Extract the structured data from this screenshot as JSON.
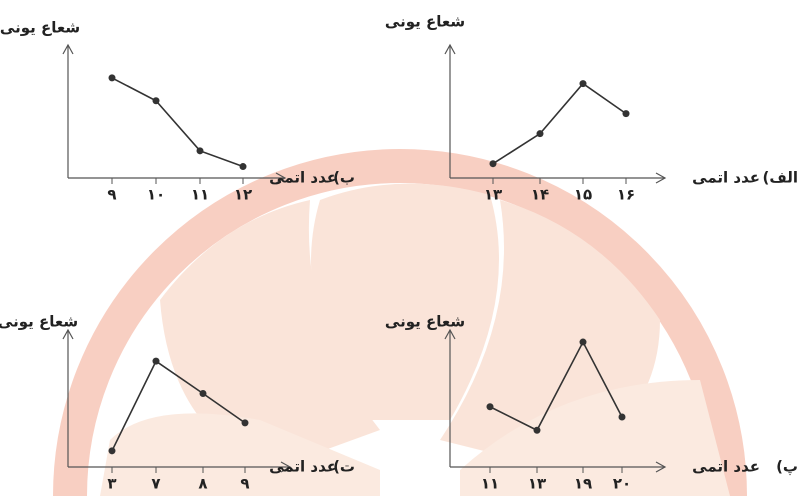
{
  "chart_data": [
    {
      "type": "line",
      "label": "ب)",
      "ylabel": "شعاع یونی",
      "xlabel": "عدد اتمی",
      "categories": [
        "۹",
        "۱۰",
        "۱۱",
        "۱۲"
      ],
      "values": [
        7.0,
        5.4,
        1.9,
        0.8
      ],
      "ylim": [
        0,
        10
      ],
      "color": "#333333"
    },
    {
      "type": "line",
      "label": "الف)",
      "ylabel": "شعاع یونی",
      "xlabel": "عدد اتمی",
      "categories": [
        "۱۳",
        "۱۴",
        "۱۵",
        "۱۶"
      ],
      "values": [
        1.0,
        3.1,
        6.6,
        4.5
      ],
      "ylim": [
        0,
        10
      ],
      "color": "#333333"
    },
    {
      "type": "line",
      "label": "ت)",
      "ylabel": "شعاع یونی",
      "xlabel": "عدد اتمی",
      "categories": [
        "۳",
        "۷",
        "۸",
        "۹"
      ],
      "values": [
        1.1,
        7.2,
        5.0,
        3.0
      ],
      "ylim": [
        0,
        10
      ],
      "color": "#333333"
    },
    {
      "type": "line",
      "label": "پ)",
      "ylabel": "شعاع یونی",
      "xlabel": "عدد اتمی",
      "categories": [
        "۱۱",
        "۱۳",
        "۱۹",
        "۲۰"
      ],
      "values": [
        4.1,
        2.5,
        8.5,
        3.4
      ],
      "ylim": [
        0,
        10
      ],
      "color": "#333333"
    }
  ]
}
